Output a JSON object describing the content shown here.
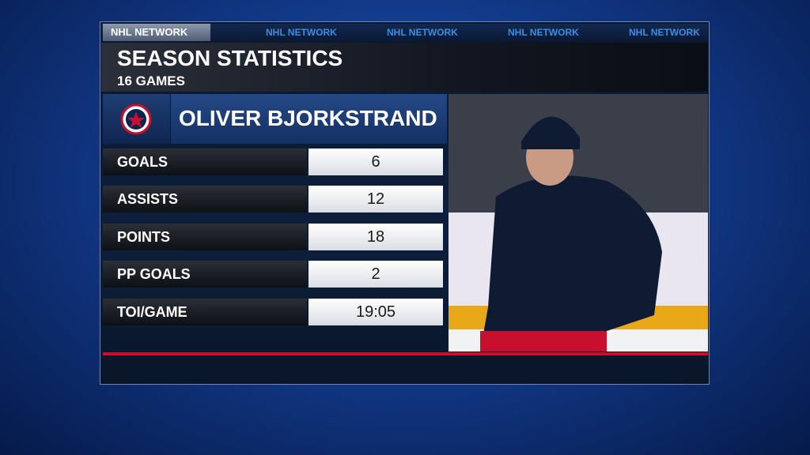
{
  "network_logo": "NHL NETWORK",
  "ticker": [
    "NHL NETWORK",
    "NHL NETWORK",
    "NHL NETWORK",
    "NHL NETWORK"
  ],
  "header": {
    "title": "SEASON STATISTICS",
    "subtitle": "16 GAMES"
  },
  "player": {
    "name": "OLIVER BJORKSTRAND"
  },
  "stats": [
    {
      "label": "GOALS",
      "value": 6
    },
    {
      "label": "ASSISTS",
      "value": 12
    },
    {
      "label": "POINTS",
      "value": 18
    },
    {
      "label": "PP GOALS",
      "value": 2
    },
    {
      "label": "TOI/GAME",
      "value": "19:05"
    }
  ]
}
